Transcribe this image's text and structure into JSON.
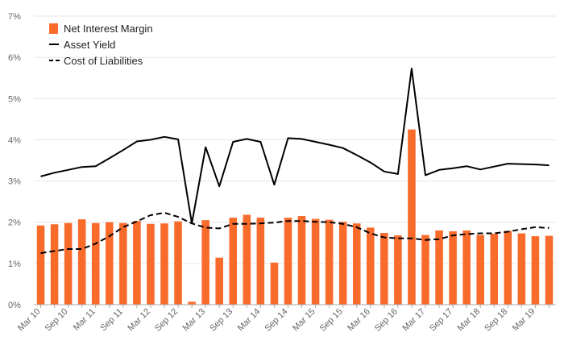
{
  "chart_data": {
    "type": "bar",
    "title": "",
    "xlabel": "",
    "ylabel": "",
    "ylim": [
      0,
      7
    ],
    "y_ticks": [
      "0%",
      "1%",
      "2%",
      "3%",
      "4%",
      "5%",
      "6%",
      "7%"
    ],
    "grid": "horizontal",
    "legend_position": "top-left",
    "x_tick_labels": [
      "Mar 10",
      "Sep 10",
      "Mar 11",
      "Sep 11",
      "Mar 12",
      "Sep 12",
      "Mar 13",
      "Sep 13",
      "Mar 14",
      "Sep 14",
      "Mar 15",
      "Sep 15",
      "Mar 16",
      "Sep 16",
      "Mar 17",
      "Sep 17",
      "Mar 18",
      "Sep 18",
      "Mar 19"
    ],
    "periods": 38,
    "colors": {
      "bar": "#f96b2b",
      "asset_line": "#000000",
      "liab_line": "#000000",
      "grid": "#e6e6e6",
      "axis": "#aaaaaa",
      "tick": "#666666"
    },
    "series": [
      {
        "name": "Net Interest Margin",
        "type": "bar",
        "values": [
          1.92,
          1.95,
          1.98,
          2.07,
          1.98,
          2.0,
          1.98,
          2.03,
          1.96,
          1.97,
          2.02,
          0.07,
          2.05,
          1.14,
          2.11,
          2.18,
          2.11,
          1.02,
          2.11,
          2.15,
          2.08,
          2.06,
          2.01,
          1.97,
          1.87,
          1.74,
          1.68,
          4.25,
          1.69,
          1.8,
          1.78,
          1.8,
          1.69,
          1.72,
          1.79,
          1.73,
          1.66,
          1.67
        ]
      },
      {
        "name": "Asset Yield",
        "type": "line",
        "values": [
          3.11,
          3.2,
          3.27,
          3.34,
          3.36,
          3.55,
          3.75,
          3.96,
          4.0,
          4.07,
          4.01,
          1.97,
          3.82,
          2.87,
          3.95,
          4.02,
          3.95,
          2.91,
          4.04,
          4.02,
          3.95,
          3.88,
          3.8,
          3.63,
          3.45,
          3.23,
          3.17,
          5.73,
          3.14,
          3.27,
          3.31,
          3.36,
          3.28,
          3.35,
          3.42,
          3.41,
          3.4,
          3.38
        ]
      },
      {
        "name": "Cost of Liabilities",
        "type": "line",
        "dashed": true,
        "values": [
          1.25,
          1.3,
          1.35,
          1.35,
          1.48,
          1.66,
          1.88,
          2.02,
          2.17,
          2.23,
          2.13,
          1.97,
          1.87,
          1.85,
          1.96,
          1.96,
          1.97,
          1.99,
          2.03,
          2.03,
          2.01,
          2.0,
          1.96,
          1.88,
          1.73,
          1.63,
          1.61,
          1.61,
          1.57,
          1.59,
          1.68,
          1.71,
          1.73,
          1.73,
          1.77,
          1.83,
          1.88,
          1.86
        ]
      }
    ]
  }
}
